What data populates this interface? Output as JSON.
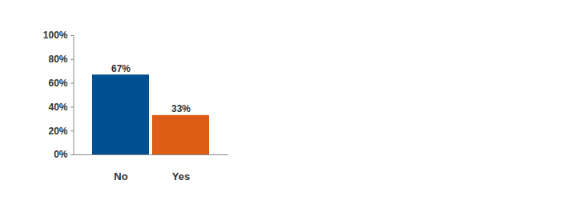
{
  "chart_data": {
    "type": "bar",
    "categories": [
      "No",
      "Yes"
    ],
    "values": [
      67,
      33
    ],
    "value_labels": [
      "67%",
      "33%"
    ],
    "colors": [
      "#00508f",
      "#dd5c16"
    ],
    "ylim": [
      0,
      100
    ],
    "yticks": [
      {
        "value": 0,
        "label": "0%"
      },
      {
        "value": 20,
        "label": "20%"
      },
      {
        "value": 40,
        "label": "40%"
      },
      {
        "value": 60,
        "label": "60%"
      },
      {
        "value": 80,
        "label": "80%"
      },
      {
        "value": 100,
        "label": "100%"
      }
    ],
    "data_labels": true,
    "grid": false
  }
}
